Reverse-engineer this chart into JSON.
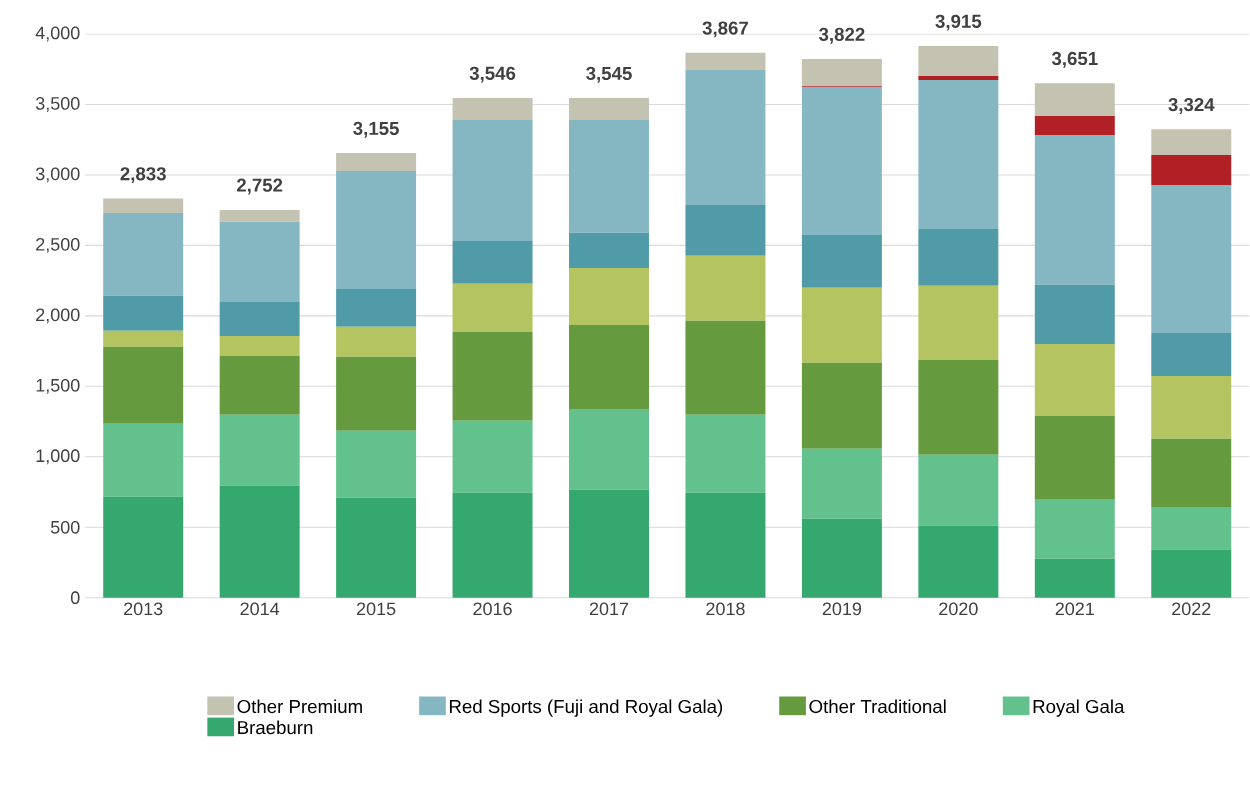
{
  "chart_data": {
    "type": "bar",
    "stacked": true,
    "categories": [
      "2013",
      "2014",
      "2015",
      "2016",
      "2017",
      "2018",
      "2019",
      "2020",
      "2021",
      "2022"
    ],
    "series": [
      {
        "name": "Braeburn",
        "color": "#34a86e",
        "values": [
          716,
          794,
          709,
          745,
          766,
          745,
          560,
          511,
          277,
          340
        ]
      },
      {
        "name": "Royal Gala",
        "color": "#62c18d",
        "values": [
          518,
          504,
          475,
          510,
          567,
          553,
          497,
          503,
          418,
          298
        ]
      },
      {
        "name": "Other Traditional",
        "color": "#659a3f",
        "values": [
          546,
          418,
          525,
          632,
          603,
          667,
          610,
          674,
          596,
          490
        ]
      },
      {
        "color": "#b3c461",
        "values": [
          114,
          142,
          213,
          340,
          404,
          461,
          532,
          525,
          510,
          446
        ]
      },
      {
        "color": "#519ba8",
        "values": [
          248,
          241,
          269,
          305,
          249,
          361,
          375,
          404,
          419,
          305
        ]
      },
      {
        "name": "Red Sports (Fuji and Royal Gala)",
        "color": "#84b7c1",
        "values": [
          588,
          568,
          837,
          858,
          801,
          958,
          1050,
          1057,
          1064,
          1050
        ]
      },
      {
        "color": "#b02025",
        "values": [
          0,
          0,
          0,
          0,
          0,
          0,
          5,
          28,
          134,
          213
        ]
      },
      {
        "name": "Other Premium",
        "color": "#c4c2b1",
        "values": [
          103,
          85,
          127,
          156,
          155,
          122,
          193,
          213,
          233,
          182
        ]
      }
    ],
    "totals": [
      "2,833",
      "2,752",
      "3,155",
      "3,546",
      "3,545",
      "3,867",
      "3,822",
      "3,915",
      "3,651",
      "3,324"
    ],
    "ylim": [
      0,
      4000
    ],
    "yticks": [
      0,
      500,
      {
        "value": 1000,
        "label": "1,000"
      },
      {
        "value": 1500,
        "label": "1,500"
      },
      {
        "value": 2000,
        "label": "2,000"
      },
      {
        "value": 2500,
        "label": "2,500"
      },
      {
        "value": 3000,
        "label": "3,000"
      },
      {
        "value": 3500,
        "label": "3,500"
      },
      {
        "value": 4000,
        "label": "4,000"
      }
    ],
    "grid": "y",
    "legend": "bottom"
  }
}
